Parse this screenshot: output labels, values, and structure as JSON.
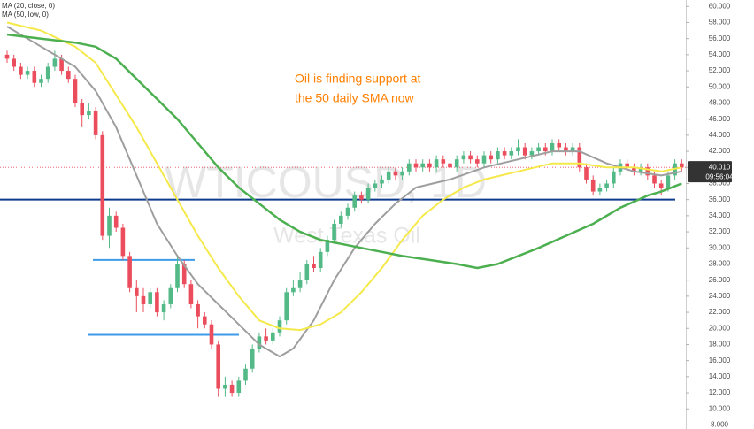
{
  "chart_data": {
    "type": "candlestick",
    "watermark": "WTICOUSD, 1D",
    "watermark_sub": "West Texas Oil",
    "annotation": [
      "Oil is finding support at",
      "the 50 daily SMA now"
    ],
    "annotation_color": "#ff7f00",
    "up_color": "#53b987",
    "down_color": "#eb4d5c",
    "candles": [
      [
        54,
        54.5,
        53,
        53.5
      ],
      [
        53.5,
        54,
        52,
        52.5
      ],
      [
        52.5,
        53,
        51,
        51.5
      ],
      [
        51.5,
        52.5,
        51,
        52
      ],
      [
        52,
        52.5,
        50,
        50.5
      ],
      [
        50.5,
        51.5,
        50,
        51
      ],
      [
        51,
        53,
        50.5,
        52.5
      ],
      [
        52.5,
        54.5,
        52,
        53.5
      ],
      [
        53.5,
        54,
        51.5,
        52
      ],
      [
        52,
        52.5,
        50.5,
        51
      ],
      [
        51,
        51.5,
        47.5,
        48
      ],
      [
        48,
        48.5,
        45,
        46.5
      ],
      [
        46.5,
        48,
        46,
        47
      ],
      [
        47,
        47.5,
        43.5,
        44
      ],
      [
        44,
        44.5,
        31,
        31.5
      ],
      [
        31.5,
        35,
        30,
        34
      ],
      [
        34,
        34.5,
        32,
        32.5
      ],
      [
        32.5,
        33,
        28.5,
        29
      ],
      [
        29,
        29.5,
        24.5,
        25
      ],
      [
        25,
        26,
        22,
        24
      ],
      [
        24,
        25,
        22,
        23
      ],
      [
        23,
        25,
        22.5,
        24.5
      ],
      [
        24.5,
        25,
        21.5,
        22
      ],
      [
        22,
        23.5,
        21,
        23
      ],
      [
        23,
        25.5,
        22.5,
        25
      ],
      [
        25,
        29,
        24.5,
        28
      ],
      [
        28,
        28.5,
        25,
        25.5
      ],
      [
        25.5,
        26,
        22.5,
        23
      ],
      [
        23,
        23.5,
        20,
        21.5
      ],
      [
        21.5,
        22,
        20,
        20.5
      ],
      [
        20.5,
        21,
        17.5,
        18
      ],
      [
        18,
        18.5,
        11.5,
        12.5
      ],
      [
        12.5,
        14,
        11.5,
        13
      ],
      [
        13,
        13.5,
        11.5,
        12
      ],
      [
        12,
        14,
        11.5,
        13.5
      ],
      [
        13.5,
        15.5,
        13,
        15
      ],
      [
        15,
        18,
        14.5,
        17.5
      ],
      [
        17.5,
        19.5,
        17,
        19
      ],
      [
        19,
        20,
        18,
        18.5
      ],
      [
        18.5,
        20,
        18,
        19.5
      ],
      [
        19.5,
        21.5,
        19,
        21
      ],
      [
        21,
        25,
        20.5,
        24.5
      ],
      [
        24.5,
        26,
        24,
        25
      ],
      [
        25,
        27,
        24.5,
        26
      ],
      [
        26,
        28.5,
        25.5,
        28
      ],
      [
        28,
        29,
        27,
        27.5
      ],
      [
        27.5,
        30,
        27,
        29.5
      ],
      [
        29.5,
        31.5,
        29,
        31
      ],
      [
        31,
        33.5,
        30.5,
        33
      ],
      [
        33,
        34.5,
        32.5,
        34
      ],
      [
        34,
        35.5,
        33.5,
        35
      ],
      [
        35,
        37,
        34.5,
        36.5
      ],
      [
        36.5,
        37,
        35.5,
        36
      ],
      [
        36,
        38,
        35.5,
        37.5
      ],
      [
        37.5,
        38.5,
        37,
        38
      ],
      [
        38,
        39,
        37.5,
        38.5
      ],
      [
        38.5,
        40,
        38,
        39.5
      ],
      [
        39.5,
        40,
        38.5,
        39
      ],
      [
        39,
        40,
        38.5,
        39.5
      ],
      [
        39.5,
        41,
        39,
        40.5
      ],
      [
        40.5,
        41,
        39.5,
        40
      ],
      [
        40,
        41,
        39.5,
        40.5
      ],
      [
        40.5,
        41,
        39.5,
        40
      ],
      [
        40,
        41.5,
        39.5,
        41
      ],
      [
        41,
        41.5,
        40,
        40.5
      ],
      [
        40.5,
        41,
        39.5,
        40
      ],
      [
        40,
        41.5,
        39.5,
        41
      ],
      [
        41,
        42,
        40.5,
        41.5
      ],
      [
        41.5,
        42,
        40.5,
        41
      ],
      [
        41,
        41.5,
        40,
        40.5
      ],
      [
        40.5,
        42,
        40,
        41.5
      ],
      [
        41.5,
        42,
        40.5,
        41
      ],
      [
        41,
        42.5,
        40.5,
        42
      ],
      [
        42,
        42.5,
        41,
        41.5
      ],
      [
        41.5,
        42.5,
        41,
        42
      ],
      [
        42,
        43.5,
        41.5,
        42.5
      ],
      [
        42.5,
        43,
        41,
        41.5
      ],
      [
        41.5,
        42.5,
        41,
        42
      ],
      [
        42,
        43,
        41.5,
        42.5
      ],
      [
        42.5,
        43,
        41.5,
        42
      ],
      [
        42,
        43.5,
        41.5,
        43
      ],
      [
        43,
        43.5,
        42,
        42.5
      ],
      [
        42.5,
        43,
        41.5,
        42
      ],
      [
        42,
        43,
        41.5,
        42.5
      ],
      [
        42.5,
        43,
        39.5,
        40
      ],
      [
        40,
        40.5,
        38,
        38.5
      ],
      [
        38.5,
        39,
        36.5,
        37
      ],
      [
        37,
        38,
        36.5,
        37.5
      ],
      [
        37.5,
        38.5,
        37,
        38
      ],
      [
        38,
        40,
        37.5,
        39.5
      ],
      [
        39.5,
        41,
        39,
        40.5
      ],
      [
        40.5,
        41,
        39.5,
        40
      ],
      [
        40,
        40.5,
        39,
        39.5
      ],
      [
        39.5,
        40.5,
        39,
        40
      ],
      [
        40,
        40.5,
        38.5,
        39
      ],
      [
        39,
        39.5,
        37.5,
        38
      ],
      [
        38,
        38.5,
        36.5,
        37.5
      ],
      [
        37.5,
        39.5,
        37,
        39
      ],
      [
        39,
        41,
        38.5,
        40.5
      ],
      [
        40.5,
        41,
        39.5,
        40
      ]
    ],
    "series": [
      {
        "name": "MA (20, close, 0)",
        "color": "#9e9e9e",
        "x": [
          0,
          3,
          7,
          10,
          13,
          16,
          19,
          22,
          25,
          28,
          31,
          34,
          37,
          40,
          42,
          45,
          48,
          51,
          54,
          57,
          60,
          65,
          70,
          75,
          80,
          84,
          88,
          92,
          96,
          99
        ],
        "values": [
          57.5,
          56,
          54,
          52.5,
          49.5,
          45,
          39,
          33,
          29,
          25.5,
          23,
          20.5,
          18,
          16.5,
          17.5,
          21,
          26,
          30,
          33,
          35.5,
          37.5,
          38.5,
          40,
          41,
          42,
          42,
          40.5,
          39.5,
          39,
          39.5
        ]
      },
      {
        "name": "MA (50, low, 0)",
        "color": "#f5e94a",
        "x": [
          0,
          5,
          10,
          13,
          16,
          19,
          22,
          25,
          28,
          31,
          34,
          37,
          40,
          43,
          46,
          49,
          52,
          55,
          58,
          61,
          64,
          67,
          70,
          75,
          80,
          84,
          88,
          92,
          96,
          99
        ],
        "values": [
          58,
          57,
          55,
          53,
          49,
          45,
          40.5,
          36,
          31.5,
          27.5,
          24,
          21,
          20,
          19.8,
          20.5,
          22,
          24.5,
          27.5,
          31,
          34,
          36,
          37.5,
          38.5,
          39.5,
          40.5,
          40.5,
          40,
          40,
          39.5,
          40
        ]
      },
      {
        "color": "#4caf50",
        "x": [
          0,
          5,
          10,
          13,
          16,
          19,
          22,
          25,
          28,
          31,
          34,
          37,
          40,
          43,
          46,
          49,
          52,
          55,
          58,
          62,
          66,
          69,
          72,
          75,
          78,
          82,
          86,
          90,
          94,
          96,
          99
        ],
        "values": [
          56.5,
          56,
          55.5,
          55,
          53.5,
          51,
          48.5,
          46,
          43,
          40,
          37.5,
          35.5,
          33.5,
          32,
          31,
          30.5,
          30,
          29.5,
          29,
          28.5,
          28,
          27.5,
          28,
          29,
          30,
          31.5,
          33,
          35,
          36.5,
          37,
          38
        ]
      }
    ],
    "levels": [
      {
        "value": 36,
        "color": "#0d3b8e"
      },
      {
        "value": 28.5,
        "color": "#3d9be9"
      },
      {
        "value": 19.2,
        "color": "#3d9be9"
      }
    ],
    "last_price": {
      "value": 40.01,
      "label": "40.010"
    },
    "countdown": "09:56:04",
    "ylim": [
      7.5,
      60.8
    ],
    "yticks": [
      {
        "value": 8,
        "label": "8.000"
      },
      {
        "value": 10,
        "label": "10.000"
      },
      {
        "value": 12,
        "label": "12.000"
      },
      {
        "value": 14,
        "label": "14.000"
      },
      {
        "value": 16,
        "label": "16.000"
      },
      {
        "value": 18,
        "label": "18.000"
      },
      {
        "value": 20,
        "label": "20.000"
      },
      {
        "value": 22,
        "label": "22.000"
      },
      {
        "value": 24,
        "label": "24.000"
      },
      {
        "value": 26,
        "label": "26.000"
      },
      {
        "value": 28,
        "label": "28.000"
      },
      {
        "value": 30,
        "label": "30.000"
      },
      {
        "value": 32,
        "label": "32.000"
      },
      {
        "value": 34,
        "label": "34.000"
      },
      {
        "value": 36,
        "label": "36.000"
      },
      {
        "value": 38,
        "label": "38.000"
      },
      {
        "value": 40,
        "label": "40.000"
      },
      {
        "value": 42,
        "label": "42.000"
      },
      {
        "value": 44,
        "label": "44.000"
      },
      {
        "value": 46,
        "label": "46.000"
      },
      {
        "value": 48,
        "label": "48.000"
      },
      {
        "value": 50,
        "label": "50.000"
      },
      {
        "value": 52,
        "label": "52.000"
      },
      {
        "value": 54,
        "label": "54.000"
      },
      {
        "value": 56,
        "label": "56.000"
      },
      {
        "value": 58,
        "label": "58.000"
      },
      {
        "value": 60,
        "label": "60.000"
      }
    ]
  }
}
